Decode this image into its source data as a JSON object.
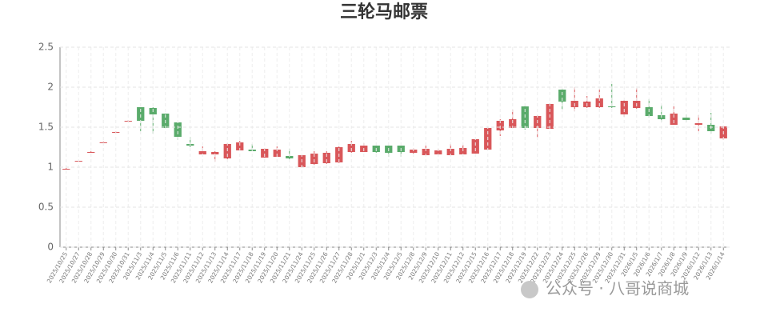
{
  "chart_data": {
    "type": "candlestick",
    "title": "三轮马邮票",
    "categories": [
      "2025/10/25",
      "2025/10/27",
      "2025/10/28",
      "2025/10/29",
      "2025/10/30",
      "2025/10/31",
      "2025/11/3",
      "2025/11/4",
      "2025/11/5",
      "2025/11/6",
      "2025/11/11",
      "2025/11/12",
      "2025/11/13",
      "2025/11/14",
      "2025/11/17",
      "2025/11/18",
      "2025/11/19",
      "2025/11/20",
      "2025/11/21",
      "2025/11/24",
      "2025/11/25",
      "2025/11/26",
      "2025/11/27",
      "2025/11/28",
      "2025/12/1",
      "2025/12/3",
      "2025/12/4",
      "2025/12/5",
      "2025/12/8",
      "2025/12/9",
      "2025/12/10",
      "2025/12/11",
      "2025/12/12",
      "2025/12/15",
      "2025/12/16",
      "2025/12/17",
      "2025/12/18",
      "2025/12/19",
      "2025/12/22",
      "2025/12/23",
      "2025/12/24",
      "2025/12/25",
      "2025/12/26",
      "2025/12/29",
      "2025/12/30",
      "2025/12/31",
      "2026/1/5",
      "2026/1/6",
      "2026/1/7",
      "2026/1/8",
      "2026/1/9",
      "2026/1/12",
      "2026/1/13",
      "2026/1/14"
    ],
    "open": [
      0.98,
      1.07,
      1.19,
      1.31,
      1.44,
      1.58,
      1.75,
      1.74,
      1.67,
      1.56,
      1.29,
      1.16,
      1.16,
      1.11,
      1.21,
      1.22,
      1.12,
      1.13,
      1.14,
      1.0,
      1.04,
      1.05,
      1.06,
      1.19,
      1.19,
      1.27,
      1.27,
      1.27,
      1.18,
      1.15,
      1.16,
      1.15,
      1.16,
      1.17,
      1.22,
      1.46,
      1.49,
      1.76,
      1.49,
      1.48,
      1.97,
      1.75,
      1.75,
      1.75,
      1.76,
      1.66,
      1.74,
      1.75,
      1.65,
      1.53,
      1.62,
      1.53,
      1.53,
      1.36
    ],
    "close": [
      0.98,
      1.08,
      1.19,
      1.31,
      1.44,
      1.58,
      1.58,
      1.66,
      1.49,
      1.38,
      1.27,
      1.2,
      1.19,
      1.29,
      1.31,
      1.2,
      1.23,
      1.22,
      1.11,
      1.15,
      1.17,
      1.18,
      1.25,
      1.29,
      1.27,
      1.19,
      1.18,
      1.19,
      1.22,
      1.23,
      1.21,
      1.23,
      1.24,
      1.35,
      1.49,
      1.58,
      1.6,
      1.49,
      1.64,
      1.79,
      1.82,
      1.83,
      1.82,
      1.86,
      1.75,
      1.83,
      1.83,
      1.64,
      1.6,
      1.67,
      1.59,
      1.55,
      1.45,
      1.51
    ],
    "low": [
      0.97,
      1.07,
      1.18,
      1.3,
      1.43,
      1.57,
      1.45,
      1.42,
      1.49,
      1.34,
      1.25,
      1.16,
      1.07,
      1.1,
      1.21,
      1.2,
      1.12,
      1.13,
      1.1,
      1.0,
      1.03,
      1.04,
      1.05,
      1.18,
      1.19,
      1.18,
      1.13,
      1.13,
      1.17,
      1.15,
      1.15,
      1.15,
      1.16,
      1.17,
      1.22,
      1.39,
      1.49,
      1.47,
      1.37,
      1.48,
      1.72,
      1.7,
      1.74,
      1.74,
      1.74,
      1.63,
      1.73,
      1.62,
      1.57,
      1.53,
      1.57,
      1.45,
      1.42,
      1.34
    ],
    "high": [
      0.99,
      1.08,
      1.2,
      1.32,
      1.45,
      1.59,
      1.75,
      1.75,
      1.67,
      1.56,
      1.38,
      1.26,
      1.2,
      1.3,
      1.33,
      1.29,
      1.24,
      1.26,
      1.23,
      1.15,
      1.2,
      1.2,
      1.26,
      1.33,
      1.3,
      1.27,
      1.27,
      1.27,
      1.24,
      1.27,
      1.23,
      1.29,
      1.28,
      1.35,
      1.5,
      1.6,
      1.72,
      1.77,
      1.65,
      1.8,
      1.98,
      2.0,
      1.89,
      1.97,
      2.04,
      1.84,
      1.99,
      1.85,
      1.78,
      1.76,
      1.66,
      1.65,
      1.68,
      1.52
    ],
    "up_color": "#d9575a",
    "down_color": "#5aab6b",
    "ylim": [
      0,
      2.5
    ],
    "yticks": [
      0,
      0.5,
      1,
      1.5,
      2,
      2.5
    ],
    "grid": true
  },
  "watermark": "公众号 · 八哥说商城"
}
